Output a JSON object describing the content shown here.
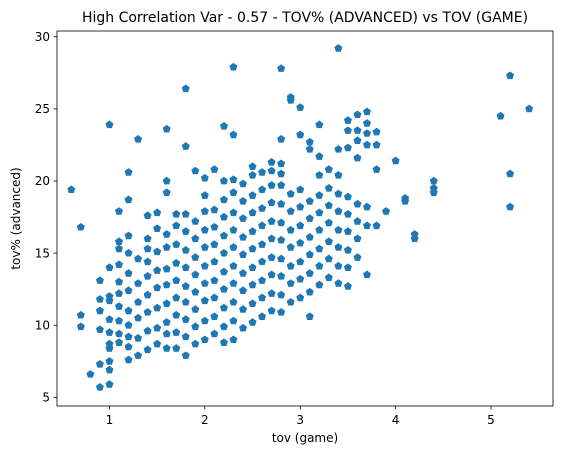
{
  "chart_data": {
    "type": "scatter",
    "title": "High Correlation Var - 0.57 - TOV% (ADVANCED) vs TOV (GAME)",
    "xlabel": "tov (game)",
    "ylabel": "tov% (advanced)",
    "xlim": [
      0.45,
      5.65
    ],
    "ylim": [
      4.4,
      30.4
    ],
    "xticks": [
      1,
      2,
      3,
      4,
      5
    ],
    "yticks": [
      5,
      10,
      15,
      20,
      25,
      30
    ],
    "grid": false,
    "legend": "none",
    "marker": "pentagon",
    "colors": {
      "series": "#1f77b4"
    },
    "points": [
      [
        0.6,
        19.4
      ],
      [
        0.7,
        16.8
      ],
      [
        0.7,
        10.7
      ],
      [
        0.7,
        9.9
      ],
      [
        0.8,
        6.6
      ],
      [
        0.9,
        5.7
      ],
      [
        0.9,
        7.3
      ],
      [
        0.9,
        9.7
      ],
      [
        0.9,
        11.0
      ],
      [
        0.9,
        11.8
      ],
      [
        0.9,
        13.1
      ],
      [
        1.0,
        5.9
      ],
      [
        1.0,
        6.9
      ],
      [
        1.0,
        7.5
      ],
      [
        1.0,
        8.4
      ],
      [
        1.0,
        8.7
      ],
      [
        1.0,
        9.5
      ],
      [
        1.0,
        10.4
      ],
      [
        1.0,
        11.7
      ],
      [
        1.0,
        12.0
      ],
      [
        1.0,
        14.0
      ],
      [
        1.0,
        23.9
      ],
      [
        1.1,
        8.8
      ],
      [
        1.1,
        9.4
      ],
      [
        1.1,
        10.3
      ],
      [
        1.1,
        11.3
      ],
      [
        1.1,
        12.2
      ],
      [
        1.1,
        13.0
      ],
      [
        1.1,
        14.2
      ],
      [
        1.1,
        15.3
      ],
      [
        1.1,
        15.8
      ],
      [
        1.1,
        17.9
      ],
      [
        1.2,
        7.6
      ],
      [
        1.2,
        8.5
      ],
      [
        1.2,
        9.2
      ],
      [
        1.2,
        10.0
      ],
      [
        1.2,
        11.0
      ],
      [
        1.2,
        12.4
      ],
      [
        1.2,
        13.6
      ],
      [
        1.2,
        15.0
      ],
      [
        1.2,
        16.2
      ],
      [
        1.2,
        18.7
      ],
      [
        1.2,
        20.6
      ],
      [
        1.3,
        7.9
      ],
      [
        1.3,
        9.1
      ],
      [
        1.3,
        10.5
      ],
      [
        1.3,
        11.6
      ],
      [
        1.3,
        12.9
      ],
      [
        1.3,
        14.6
      ],
      [
        1.3,
        22.9
      ],
      [
        1.4,
        8.3
      ],
      [
        1.4,
        9.6
      ],
      [
        1.4,
        10.9
      ],
      [
        1.4,
        12.1
      ],
      [
        1.4,
        13.4
      ],
      [
        1.4,
        14.4
      ],
      [
        1.4,
        15.3
      ],
      [
        1.4,
        16.0
      ],
      [
        1.4,
        17.6
      ],
      [
        1.5,
        8.7
      ],
      [
        1.5,
        9.8
      ],
      [
        1.5,
        11.2
      ],
      [
        1.5,
        12.6
      ],
      [
        1.5,
        13.8
      ],
      [
        1.5,
        15.1
      ],
      [
        1.5,
        16.7
      ],
      [
        1.5,
        17.8
      ],
      [
        1.6,
        8.4
      ],
      [
        1.6,
        9.4
      ],
      [
        1.6,
        10.2
      ],
      [
        1.6,
        11.5
      ],
      [
        1.6,
        12.8
      ],
      [
        1.6,
        13.9
      ],
      [
        1.6,
        15.4
      ],
      [
        1.6,
        16.3
      ],
      [
        1.6,
        19.2
      ],
      [
        1.6,
        20.0
      ],
      [
        1.6,
        23.6
      ],
      [
        1.7,
        8.4
      ],
      [
        1.7,
        9.5
      ],
      [
        1.7,
        10.7
      ],
      [
        1.7,
        11.9
      ],
      [
        1.7,
        13.1
      ],
      [
        1.7,
        14.3
      ],
      [
        1.7,
        15.6
      ],
      [
        1.7,
        16.9
      ],
      [
        1.7,
        17.7
      ],
      [
        1.8,
        7.9
      ],
      [
        1.8,
        9.2
      ],
      [
        1.8,
        10.4
      ],
      [
        1.8,
        11.6
      ],
      [
        1.8,
        12.7
      ],
      [
        1.8,
        14.0
      ],
      [
        1.8,
        15.2
      ],
      [
        1.8,
        16.5
      ],
      [
        1.8,
        17.7
      ],
      [
        1.8,
        22.4
      ],
      [
        1.8,
        26.4
      ],
      [
        1.9,
        8.7
      ],
      [
        1.9,
        9.9
      ],
      [
        1.9,
        11.1
      ],
      [
        1.9,
        12.3
      ],
      [
        1.9,
        13.5
      ],
      [
        1.9,
        14.7
      ],
      [
        1.9,
        16.0
      ],
      [
        1.9,
        17.2
      ],
      [
        1.9,
        20.7
      ],
      [
        2.0,
        9.0
      ],
      [
        2.0,
        10.3
      ],
      [
        2.0,
        11.7
      ],
      [
        2.0,
        12.9
      ],
      [
        2.0,
        14.1
      ],
      [
        2.0,
        15.4
      ],
      [
        2.0,
        16.6
      ],
      [
        2.0,
        17.9
      ],
      [
        2.0,
        19.0
      ],
      [
        2.0,
        20.2
      ],
      [
        2.1,
        9.4
      ],
      [
        2.1,
        10.6
      ],
      [
        2.1,
        11.9
      ],
      [
        2.1,
        13.1
      ],
      [
        2.1,
        14.4
      ],
      [
        2.1,
        15.6
      ],
      [
        2.1,
        16.8
      ],
      [
        2.1,
        18.0
      ],
      [
        2.1,
        20.8
      ],
      [
        2.2,
        8.8
      ],
      [
        2.2,
        9.9
      ],
      [
        2.2,
        11.2
      ],
      [
        2.2,
        12.5
      ],
      [
        2.2,
        13.7
      ],
      [
        2.2,
        15.0
      ],
      [
        2.2,
        16.2
      ],
      [
        2.2,
        17.5
      ],
      [
        2.2,
        18.7
      ],
      [
        2.2,
        20.0
      ],
      [
        2.2,
        23.8
      ],
      [
        2.3,
        9.0
      ],
      [
        2.3,
        10.3
      ],
      [
        2.3,
        11.6
      ],
      [
        2.3,
        12.9
      ],
      [
        2.3,
        14.1
      ],
      [
        2.3,
        15.4
      ],
      [
        2.3,
        16.6
      ],
      [
        2.3,
        17.8
      ],
      [
        2.3,
        19.2
      ],
      [
        2.3,
        20.1
      ],
      [
        2.3,
        23.2
      ],
      [
        2.3,
        27.9
      ],
      [
        2.4,
        9.8
      ],
      [
        2.4,
        11.1
      ],
      [
        2.4,
        12.4
      ],
      [
        2.4,
        13.6
      ],
      [
        2.4,
        14.9
      ],
      [
        2.4,
        16.1
      ],
      [
        2.4,
        17.4
      ],
      [
        2.4,
        18.6
      ],
      [
        2.4,
        19.8
      ],
      [
        2.5,
        10.2
      ],
      [
        2.5,
        11.5
      ],
      [
        2.5,
        12.8
      ],
      [
        2.5,
        14.0
      ],
      [
        2.5,
        15.3
      ],
      [
        2.5,
        16.5
      ],
      [
        2.5,
        17.8
      ],
      [
        2.5,
        19.0
      ],
      [
        2.5,
        20.4
      ],
      [
        2.5,
        21.0
      ],
      [
        2.6,
        10.6
      ],
      [
        2.6,
        11.9
      ],
      [
        2.6,
        13.1
      ],
      [
        2.6,
        14.4
      ],
      [
        2.6,
        15.6
      ],
      [
        2.6,
        16.9
      ],
      [
        2.6,
        18.1
      ],
      [
        2.6,
        19.4
      ],
      [
        2.6,
        20.6
      ],
      [
        2.7,
        11.0
      ],
      [
        2.7,
        12.2
      ],
      [
        2.7,
        13.5
      ],
      [
        2.7,
        14.7
      ],
      [
        2.7,
        16.0
      ],
      [
        2.7,
        17.2
      ],
      [
        2.7,
        18.5
      ],
      [
        2.7,
        19.7
      ],
      [
        2.7,
        20.7
      ],
      [
        2.7,
        21.3
      ],
      [
        2.8,
        10.9
      ],
      [
        2.8,
        12.1
      ],
      [
        2.8,
        13.4
      ],
      [
        2.8,
        14.6
      ],
      [
        2.8,
        15.9
      ],
      [
        2.8,
        17.1
      ],
      [
        2.8,
        18.4
      ],
      [
        2.8,
        19.7
      ],
      [
        2.8,
        20.5
      ],
      [
        2.8,
        21.2
      ],
      [
        2.8,
        22.9
      ],
      [
        2.8,
        27.8
      ],
      [
        2.9,
        11.6
      ],
      [
        2.9,
        12.9
      ],
      [
        2.9,
        14.1
      ],
      [
        2.9,
        15.4
      ],
      [
        2.9,
        16.6
      ],
      [
        2.9,
        17.9
      ],
      [
        2.9,
        19.1
      ],
      [
        2.9,
        25.6
      ],
      [
        2.9,
        25.8
      ],
      [
        3.0,
        11.9
      ],
      [
        3.0,
        13.2
      ],
      [
        3.0,
        14.4
      ],
      [
        3.0,
        15.7
      ],
      [
        3.0,
        16.9
      ],
      [
        3.0,
        18.2
      ],
      [
        3.0,
        19.4
      ],
      [
        3.0,
        23.2
      ],
      [
        3.0,
        25.1
      ],
      [
        3.1,
        10.6
      ],
      [
        3.1,
        12.3
      ],
      [
        3.1,
        13.6
      ],
      [
        3.1,
        14.9
      ],
      [
        3.1,
        16.1
      ],
      [
        3.1,
        17.4
      ],
      [
        3.1,
        18.6
      ],
      [
        3.1,
        22.2
      ],
      [
        3.1,
        22.7
      ],
      [
        3.2,
        12.8
      ],
      [
        3.2,
        14.1
      ],
      [
        3.2,
        15.3
      ],
      [
        3.2,
        16.6
      ],
      [
        3.2,
        17.8
      ],
      [
        3.2,
        19.0
      ],
      [
        3.2,
        20.4
      ],
      [
        3.2,
        21.7
      ],
      [
        3.2,
        23.9
      ],
      [
        3.3,
        13.3
      ],
      [
        3.3,
        14.6
      ],
      [
        3.3,
        15.8
      ],
      [
        3.3,
        17.1
      ],
      [
        3.3,
        18.3
      ],
      [
        3.3,
        19.5
      ],
      [
        3.3,
        20.8
      ],
      [
        3.4,
        12.9
      ],
      [
        3.4,
        14.1
      ],
      [
        3.4,
        15.4
      ],
      [
        3.4,
        16.6
      ],
      [
        3.4,
        17.9
      ],
      [
        3.4,
        19.1
      ],
      [
        3.4,
        20.4
      ],
      [
        3.4,
        22.2
      ],
      [
        3.4,
        29.2
      ],
      [
        3.5,
        12.7
      ],
      [
        3.5,
        14.0
      ],
      [
        3.5,
        15.2
      ],
      [
        3.5,
        16.5
      ],
      [
        3.5,
        17.7
      ],
      [
        3.5,
        18.9
      ],
      [
        3.5,
        22.3
      ],
      [
        3.5,
        23.5
      ],
      [
        3.5,
        24.2
      ],
      [
        3.6,
        14.7
      ],
      [
        3.6,
        16.0
      ],
      [
        3.6,
        17.2
      ],
      [
        3.6,
        18.4
      ],
      [
        3.6,
        21.6
      ],
      [
        3.6,
        22.8
      ],
      [
        3.6,
        23.5
      ],
      [
        3.6,
        24.6
      ],
      [
        3.7,
        13.5
      ],
      [
        3.7,
        16.9
      ],
      [
        3.7,
        18.2
      ],
      [
        3.7,
        22.5
      ],
      [
        3.7,
        23.3
      ],
      [
        3.7,
        24.0
      ],
      [
        3.7,
        24.8
      ],
      [
        3.8,
        16.9
      ],
      [
        3.8,
        20.8
      ],
      [
        3.8,
        22.5
      ],
      [
        3.8,
        23.4
      ],
      [
        3.9,
        17.9
      ],
      [
        4.0,
        21.4
      ],
      [
        4.1,
        18.6
      ],
      [
        4.1,
        18.8
      ],
      [
        4.2,
        16.0
      ],
      [
        4.2,
        16.3
      ],
      [
        4.4,
        19.2
      ],
      [
        4.4,
        19.5
      ],
      [
        4.4,
        20.0
      ],
      [
        5.1,
        24.5
      ],
      [
        5.2,
        27.3
      ],
      [
        5.2,
        20.5
      ],
      [
        5.2,
        18.2
      ],
      [
        5.4,
        25.0
      ]
    ]
  }
}
